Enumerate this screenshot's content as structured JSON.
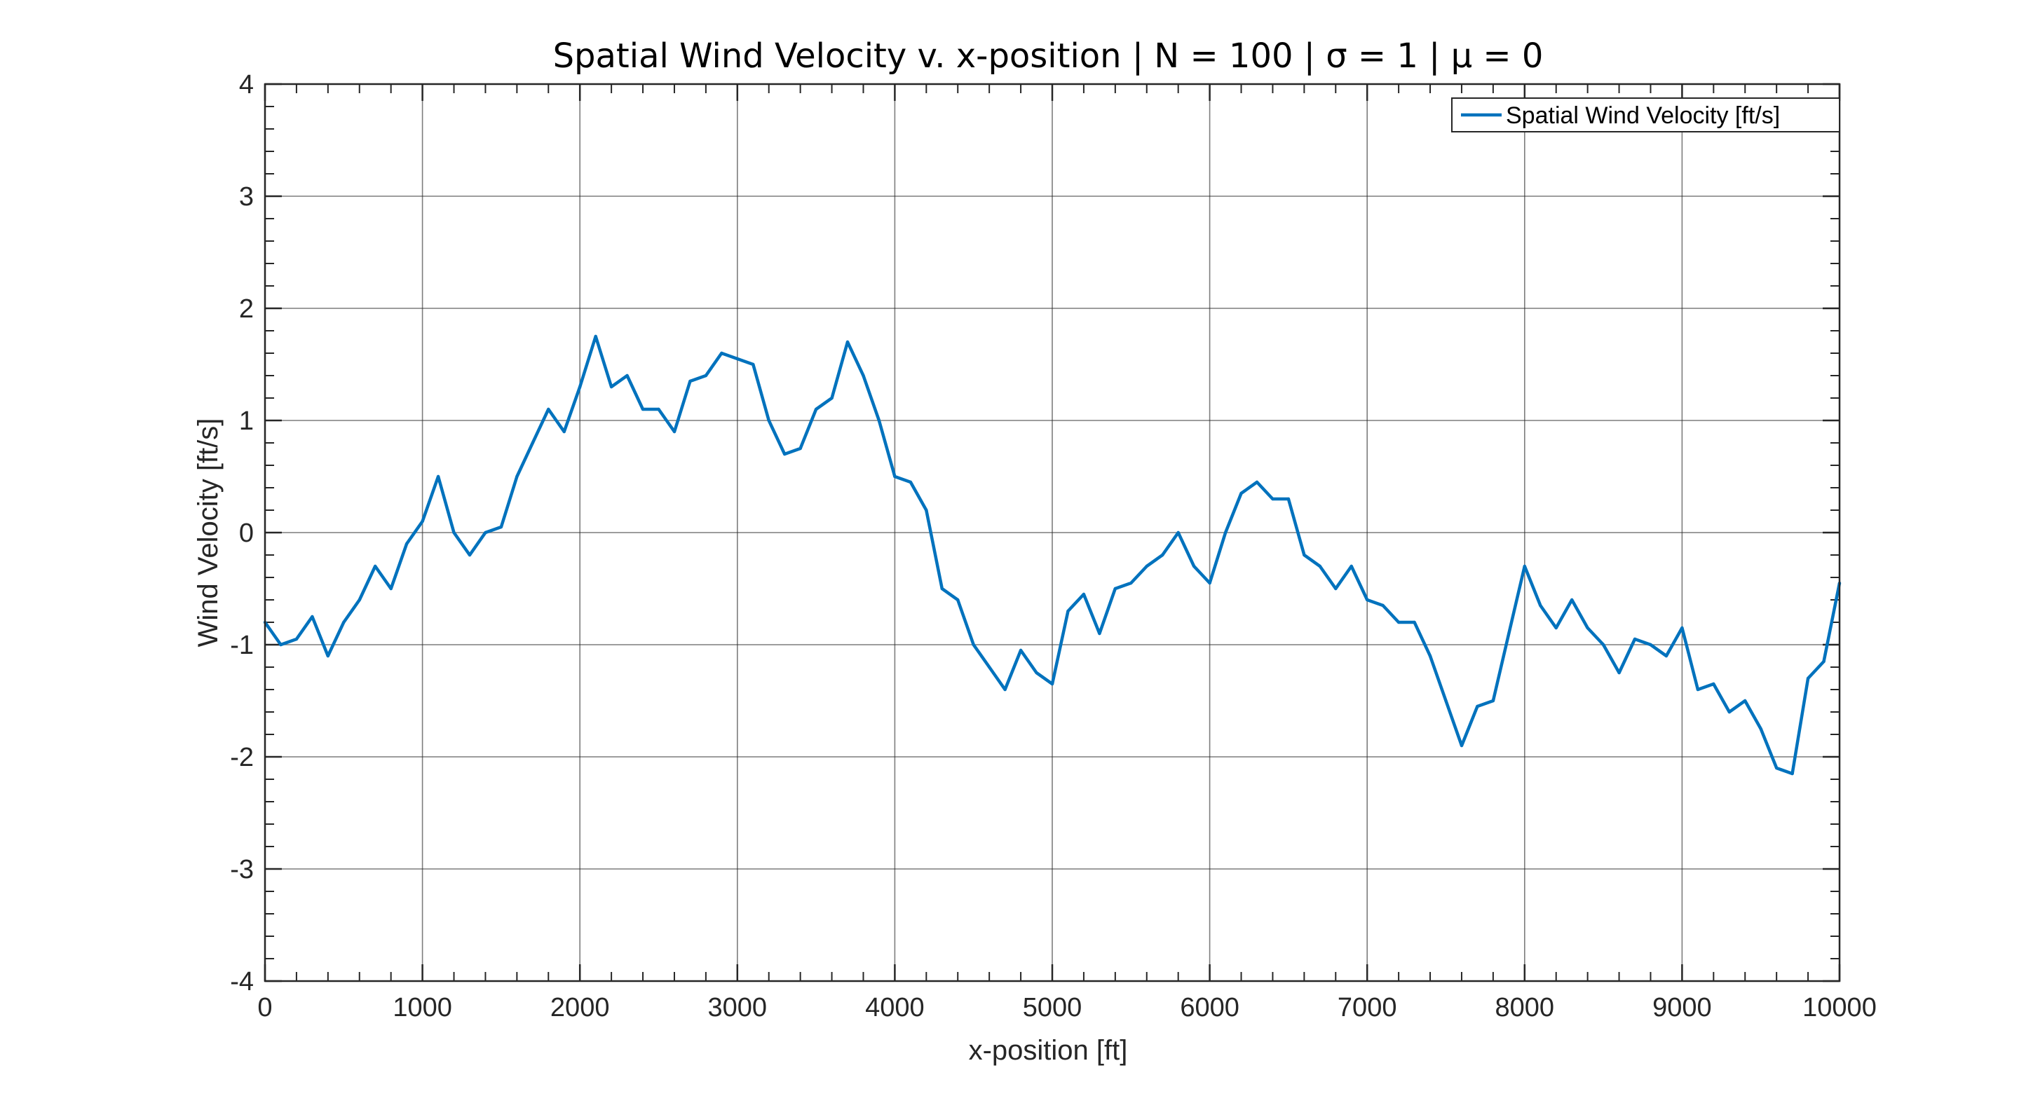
{
  "chart_data": {
    "type": "line",
    "title": "Spatial Wind Velocity v. x-position | N = 100 | σ = 1 | μ = 0",
    "xlabel": "x-position [ft]",
    "ylabel": "Wind Velocity [ft/s]",
    "xlim": [
      0,
      10000
    ],
    "ylim": [
      -4,
      4
    ],
    "xticks": [
      0,
      1000,
      2000,
      3000,
      4000,
      5000,
      6000,
      7000,
      8000,
      9000,
      10000
    ],
    "xtick_labels": [
      "0",
      "1000",
      "2000",
      "3000",
      "4000",
      "5000",
      "6000",
      "7000",
      "8000",
      "9000",
      "10000"
    ],
    "yticks": [
      -4,
      -3,
      -2,
      -1,
      0,
      1,
      2,
      3,
      4
    ],
    "ytick_labels": [
      "-4",
      "-3",
      "-2",
      "-1",
      "0",
      "1",
      "2",
      "3",
      "4"
    ],
    "grid": true,
    "legend_position": "top-right",
    "series": [
      {
        "name": "Spatial Wind Velocity [ft/s]",
        "color": "#0072BD",
        "x": [
          0,
          100,
          200,
          300,
          400,
          500,
          600,
          700,
          800,
          900,
          1000,
          1100,
          1200,
          1300,
          1400,
          1500,
          1600,
          1700,
          1800,
          1900,
          2000,
          2100,
          2200,
          2300,
          2400,
          2500,
          2600,
          2700,
          2800,
          2900,
          3000,
          3100,
          3200,
          3300,
          3400,
          3500,
          3600,
          3700,
          3800,
          3900,
          4000,
          4100,
          4200,
          4300,
          4400,
          4500,
          4600,
          4700,
          4800,
          4900,
          5000,
          5100,
          5200,
          5300,
          5400,
          5500,
          5600,
          5700,
          5800,
          5900,
          6000,
          6100,
          6200,
          6300,
          6400,
          6500,
          6600,
          6700,
          6800,
          6900,
          7000,
          7100,
          7200,
          7300,
          7400,
          7500,
          7600,
          7700,
          7800,
          7900,
          8000,
          8100,
          8200,
          8300,
          8400,
          8500,
          8600,
          8700,
          8800,
          8900,
          9000,
          9100,
          9200,
          9300,
          9400,
          9500,
          9600,
          9700,
          9800,
          9900,
          10000
        ],
        "values": [
          -0.8,
          -1.0,
          -0.95,
          -0.75,
          -1.1,
          -0.8,
          -0.6,
          -0.3,
          -0.5,
          -0.1,
          0.1,
          0.5,
          0.0,
          -0.2,
          0.0,
          0.05,
          0.5,
          0.8,
          1.1,
          0.9,
          1.3,
          1.75,
          1.3,
          1.4,
          1.1,
          1.1,
          0.9,
          1.35,
          1.4,
          1.6,
          1.55,
          1.5,
          1.0,
          0.7,
          0.75,
          1.1,
          1.2,
          1.7,
          1.4,
          1.0,
          0.5,
          0.45,
          0.2,
          -0.5,
          -0.6,
          -1.0,
          -1.2,
          -1.4,
          -1.05,
          -1.25,
          -1.35,
          -0.7,
          -0.55,
          -0.9,
          -0.5,
          -0.45,
          -0.3,
          -0.2,
          0.0,
          -0.3,
          -0.45,
          0.0,
          0.35,
          0.45,
          0.3,
          0.3,
          -0.2,
          -0.3,
          -0.5,
          -0.3,
          -0.6,
          -0.65,
          -0.8,
          -0.8,
          -1.1,
          -1.5,
          -1.9,
          -1.55,
          -1.5,
          -0.9,
          -0.3,
          -0.65,
          -0.85,
          -0.6,
          -0.85,
          -1.0,
          -1.25,
          -0.95,
          -1.0,
          -1.1,
          -0.85,
          -1.4,
          -1.35,
          -1.6,
          -1.5,
          -1.75,
          -2.1,
          -2.15,
          -1.3,
          -1.15,
          -0.45
        ]
      }
    ]
  }
}
